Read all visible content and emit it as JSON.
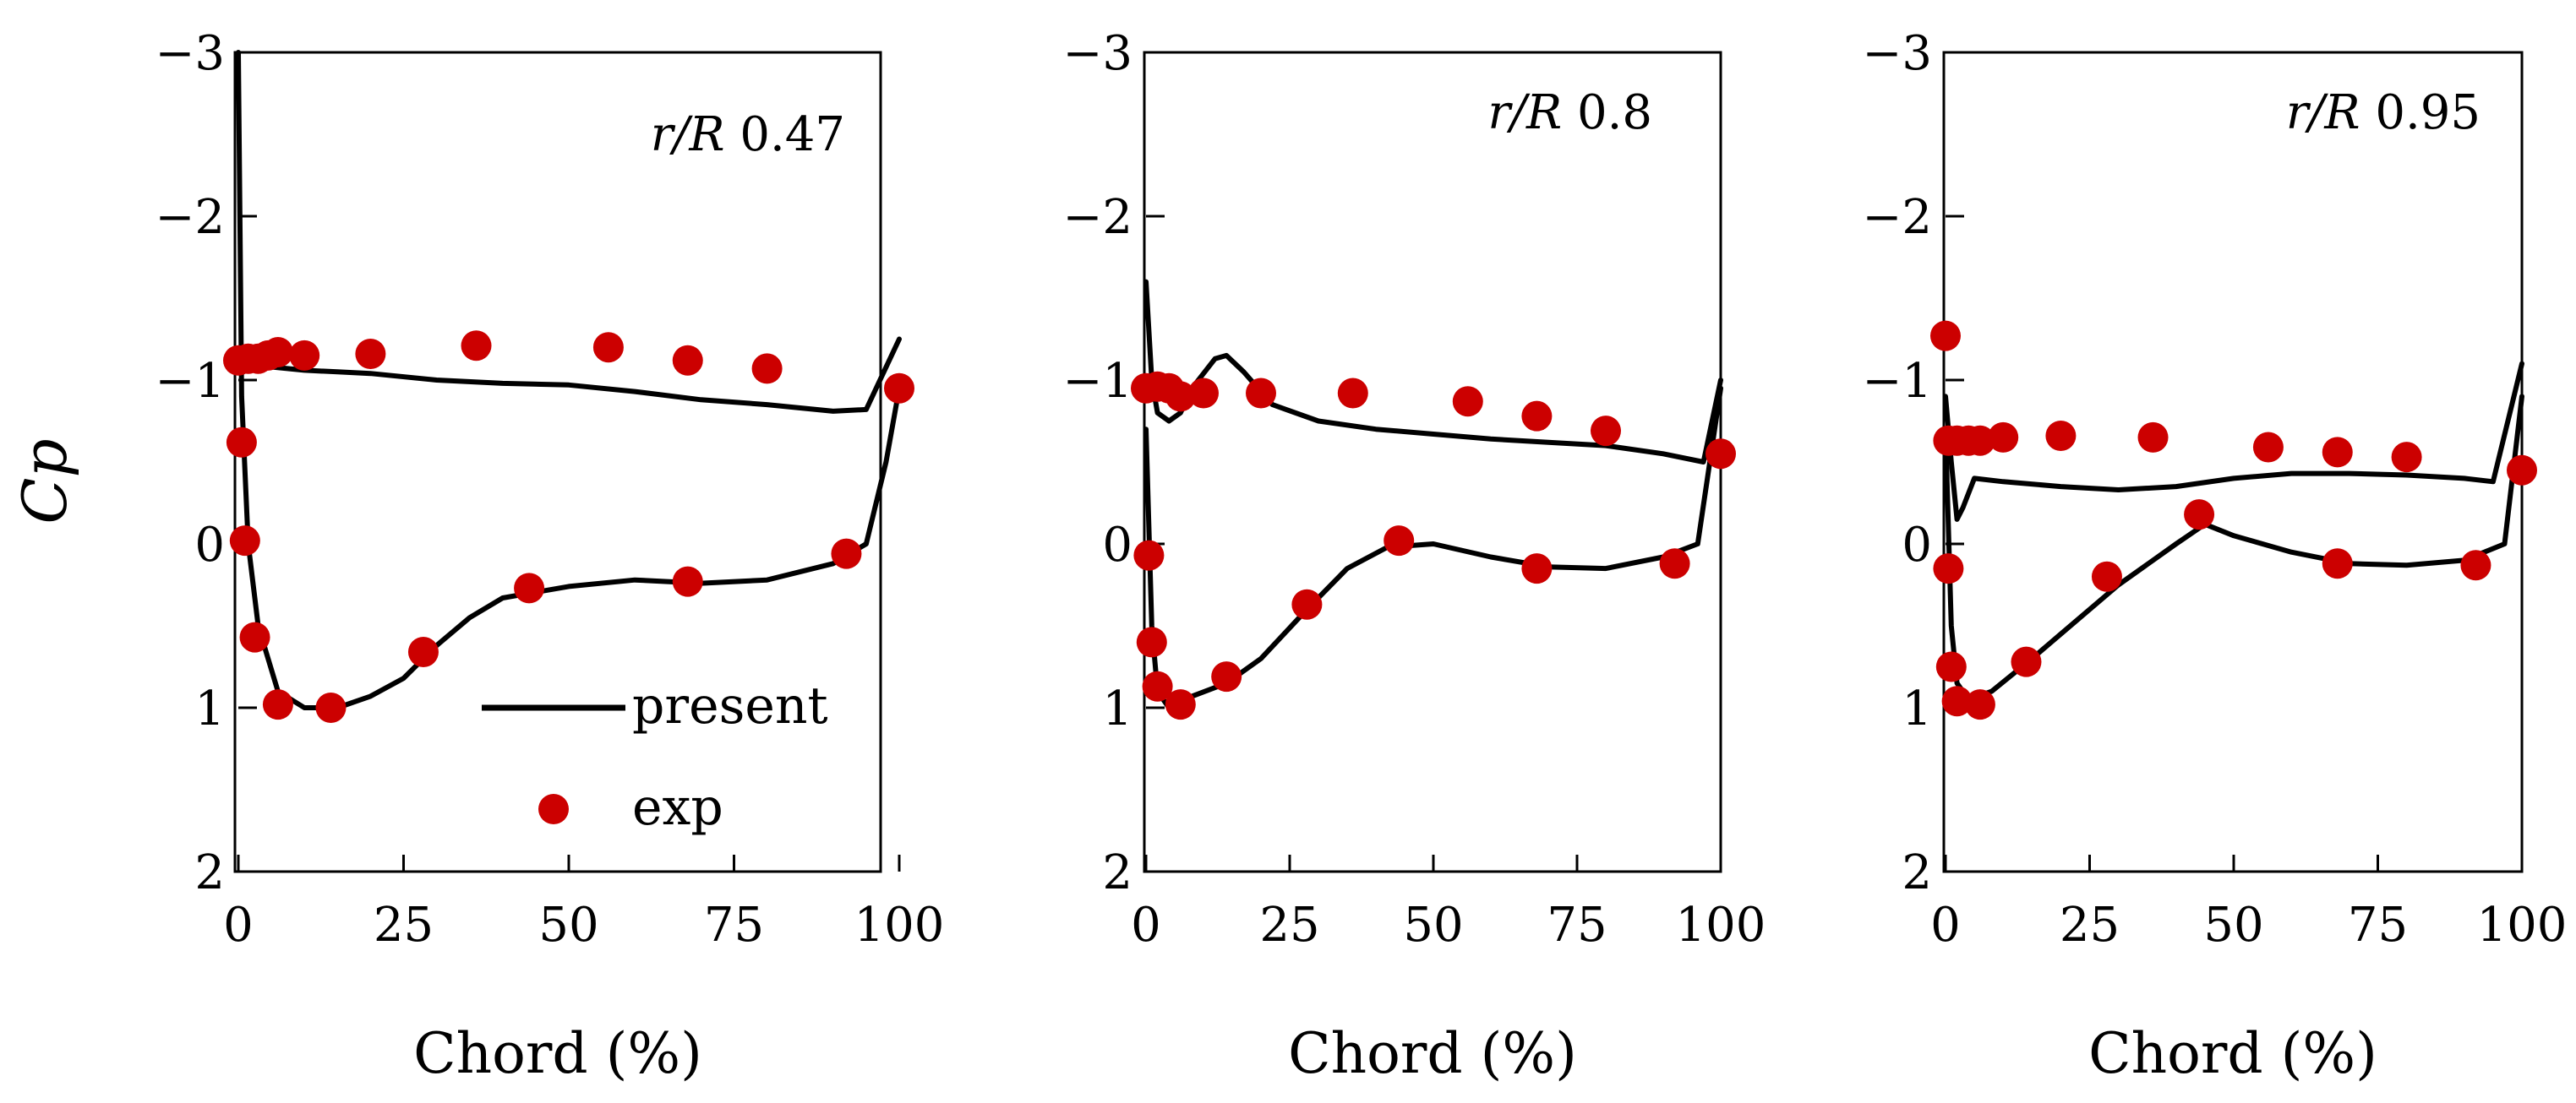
{
  "chart_data": [
    {
      "type": "line",
      "annotation_var": "r/R",
      "annotation_value": "0.47",
      "xlabel": "Chord (%)",
      "ylabel": "Cp",
      "xlim": [
        0,
        100
      ],
      "ylim": [
        2,
        -3
      ],
      "xticks": [
        "0",
        "25",
        "50",
        "75",
        "100"
      ],
      "yticks": [
        "−3",
        "−2",
        "−1",
        "0",
        "1",
        "2"
      ],
      "series": [
        {
          "name": "present",
          "style": "line",
          "upper": [
            [
              0,
              -1.05
            ],
            [
              1,
              -1.1
            ],
            [
              5,
              -1.08
            ],
            [
              10,
              -1.06
            ],
            [
              15,
              -1.05
            ],
            [
              20,
              -1.04
            ],
            [
              30,
              -1.0
            ],
            [
              40,
              -0.98
            ],
            [
              50,
              -0.97
            ],
            [
              60,
              -0.93
            ],
            [
              70,
              -0.88
            ],
            [
              80,
              -0.85
            ],
            [
              90,
              -0.81
            ],
            [
              95,
              -0.82
            ],
            [
              100,
              -1.25
            ]
          ],
          "lower": [
            [
              0,
              -3.0
            ],
            [
              0.5,
              -0.9
            ],
            [
              1.5,
              0.0
            ],
            [
              3,
              0.5
            ],
            [
              6,
              0.9
            ],
            [
              10,
              1.0
            ],
            [
              15,
              1.0
            ],
            [
              20,
              0.93
            ],
            [
              25,
              0.82
            ],
            [
              30,
              0.62
            ],
            [
              35,
              0.45
            ],
            [
              40,
              0.33
            ],
            [
              50,
              0.26
            ],
            [
              60,
              0.22
            ],
            [
              70,
              0.24
            ],
            [
              80,
              0.22
            ],
            [
              90,
              0.12
            ],
            [
              95,
              0.0
            ],
            [
              98,
              -0.5
            ],
            [
              100,
              -0.95
            ]
          ]
        },
        {
          "name": "exp",
          "style": "scatter",
          "x": [
            0,
            1.5,
            3,
            4.5,
            6,
            10,
            20,
            36,
            56,
            68,
            80,
            0.5,
            1,
            2.5,
            6,
            14,
            28,
            44,
            68,
            92,
            100
          ],
          "y": [
            -1.12,
            -1.13,
            -1.13,
            -1.15,
            -1.17,
            -1.15,
            -1.16,
            -1.21,
            -1.2,
            -1.12,
            -1.07,
            -0.62,
            -0.02,
            0.57,
            0.98,
            1.0,
            0.66,
            0.27,
            0.23,
            0.06,
            -0.95
          ]
        }
      ],
      "legend": {
        "entries": [
          "present",
          "exp"
        ],
        "placement": "bottom-right"
      }
    },
    {
      "type": "line",
      "annotation_var": "r/R",
      "annotation_value": "0.8",
      "xlabel": "Chord (%)",
      "ylabel": "",
      "xlim": [
        0,
        100
      ],
      "ylim": [
        2,
        -3
      ],
      "xticks": [
        "0",
        "25",
        "50",
        "75",
        "100"
      ],
      "yticks": [
        "−3",
        "−2",
        "−1",
        "0",
        "1",
        "2"
      ],
      "series": [
        {
          "name": "present",
          "style": "line",
          "upper": [
            [
              0,
              -1.6
            ],
            [
              1,
              -1.0
            ],
            [
              2,
              -0.8
            ],
            [
              4,
              -0.75
            ],
            [
              6,
              -0.8
            ],
            [
              8,
              -0.95
            ],
            [
              12,
              -1.13
            ],
            [
              14,
              -1.15
            ],
            [
              17,
              -1.05
            ],
            [
              22,
              -0.85
            ],
            [
              30,
              -0.75
            ],
            [
              40,
              -0.7
            ],
            [
              50,
              -0.67
            ],
            [
              60,
              -0.64
            ],
            [
              70,
              -0.62
            ],
            [
              80,
              -0.6
            ],
            [
              90,
              -0.55
            ],
            [
              97,
              -0.5
            ],
            [
              100,
              -1.0
            ]
          ],
          "lower": [
            [
              0,
              -0.7
            ],
            [
              1,
              0.5
            ],
            [
              2,
              0.9
            ],
            [
              4,
              1.0
            ],
            [
              8,
              0.93
            ],
            [
              14,
              0.85
            ],
            [
              20,
              0.7
            ],
            [
              28,
              0.4
            ],
            [
              35,
              0.15
            ],
            [
              42,
              0.02
            ],
            [
              50,
              0.0
            ],
            [
              60,
              0.08
            ],
            [
              70,
              0.14
            ],
            [
              80,
              0.15
            ],
            [
              90,
              0.08
            ],
            [
              96,
              0.0
            ],
            [
              100,
              -0.95
            ]
          ]
        },
        {
          "name": "exp",
          "style": "scatter",
          "x": [
            0,
            2,
            4,
            6,
            10,
            20,
            36,
            56,
            68,
            80,
            0.5,
            1,
            2,
            6,
            14,
            28,
            44,
            68,
            92,
            100
          ],
          "y": [
            -0.95,
            -0.96,
            -0.95,
            -0.9,
            -0.92,
            -0.92,
            -0.92,
            -0.87,
            -0.78,
            -0.69,
            0.07,
            0.6,
            0.87,
            0.98,
            0.81,
            0.37,
            -0.02,
            0.15,
            0.12,
            -0.55
          ]
        }
      ]
    },
    {
      "type": "line",
      "annotation_var": "r/R",
      "annotation_value": "0.95",
      "xlabel": "Chord (%)",
      "ylabel": "",
      "xlim": [
        0,
        100
      ],
      "ylim": [
        2,
        -3
      ],
      "xticks": [
        "0",
        "25",
        "50",
        "75",
        "100"
      ],
      "yticks": [
        "−3",
        "−2",
        "−1",
        "0",
        "1",
        "2"
      ],
      "series": [
        {
          "name": "present",
          "style": "line",
          "upper": [
            [
              0,
              -0.9
            ],
            [
              1,
              -0.5
            ],
            [
              2,
              -0.15
            ],
            [
              3,
              -0.22
            ],
            [
              5,
              -0.4
            ],
            [
              10,
              -0.38
            ],
            [
              20,
              -0.35
            ],
            [
              30,
              -0.33
            ],
            [
              40,
              -0.35
            ],
            [
              50,
              -0.4
            ],
            [
              60,
              -0.43
            ],
            [
              70,
              -0.43
            ],
            [
              80,
              -0.42
            ],
            [
              90,
              -0.4
            ],
            [
              95,
              -0.38
            ],
            [
              100,
              -1.1
            ]
          ],
          "lower": [
            [
              0,
              -0.7
            ],
            [
              1,
              0.5
            ],
            [
              2,
              0.85
            ],
            [
              4,
              0.95
            ],
            [
              8,
              0.9
            ],
            [
              15,
              0.7
            ],
            [
              20,
              0.55
            ],
            [
              30,
              0.25
            ],
            [
              40,
              0.0
            ],
            [
              45,
              -0.12
            ],
            [
              50,
              -0.05
            ],
            [
              60,
              0.05
            ],
            [
              70,
              0.12
            ],
            [
              80,
              0.13
            ],
            [
              90,
              0.1
            ],
            [
              97,
              0.0
            ],
            [
              100,
              -0.9
            ]
          ]
        },
        {
          "name": "exp",
          "style": "scatter",
          "x": [
            0,
            0.5,
            2,
            4,
            6,
            10,
            20,
            36,
            56,
            68,
            80,
            0.5,
            1,
            2,
            6,
            14,
            28,
            44,
            68,
            92,
            100
          ],
          "y": [
            -1.27,
            -0.63,
            -0.63,
            -0.63,
            -0.63,
            -0.65,
            -0.66,
            -0.65,
            -0.59,
            -0.56,
            -0.53,
            0.15,
            0.75,
            0.96,
            0.98,
            0.72,
            0.2,
            -0.18,
            0.12,
            0.13,
            -0.45
          ]
        }
      ]
    }
  ],
  "colors": {
    "line": "#000000",
    "marker": "#cc0000"
  }
}
